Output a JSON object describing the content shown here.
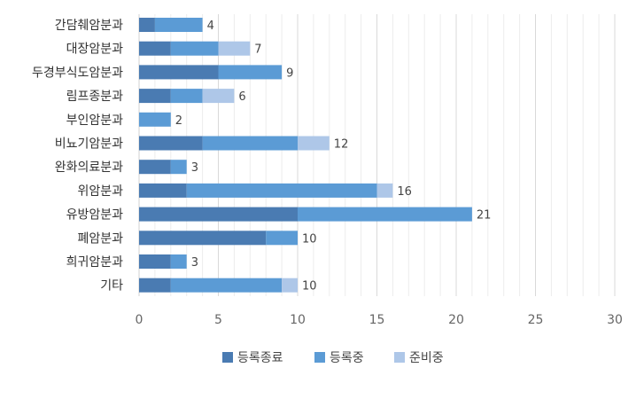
{
  "chart_data": {
    "type": "bar",
    "orientation": "horizontal",
    "stacked": true,
    "categories": [
      "간담췌암분과",
      "대장암분과",
      "두경부식도암분과",
      "림프종분과",
      "부인암분과",
      "비뇨기암분과",
      "완화의료분과",
      "위암분과",
      "유방암분과",
      "폐암분과",
      "희귀암분과",
      "기타"
    ],
    "series": [
      {
        "name": "등록종료",
        "color": "#4a7bb2",
        "values": [
          1,
          2,
          5,
          2,
          0,
          4,
          2,
          3,
          10,
          8,
          2,
          2
        ]
      },
      {
        "name": "등록중",
        "color": "#5b9bd5",
        "values": [
          3,
          3,
          4,
          2,
          2,
          6,
          1,
          12,
          11,
          2,
          1,
          7
        ]
      },
      {
        "name": "준비중",
        "color": "#aec7e8",
        "values": [
          0,
          2,
          0,
          2,
          0,
          2,
          0,
          1,
          0,
          0,
          0,
          1
        ]
      }
    ],
    "totals": [
      "4",
      "7",
      "9",
      "6",
      "2",
      "12",
      "3",
      "16",
      "21",
      "10",
      "3",
      "10"
    ],
    "xlim": [
      0,
      30
    ],
    "xticks": [
      "0",
      "5",
      "10",
      "15",
      "20",
      "25",
      "30"
    ],
    "minor_grid_step": 1,
    "grid": true,
    "legend_position": "bottom"
  }
}
